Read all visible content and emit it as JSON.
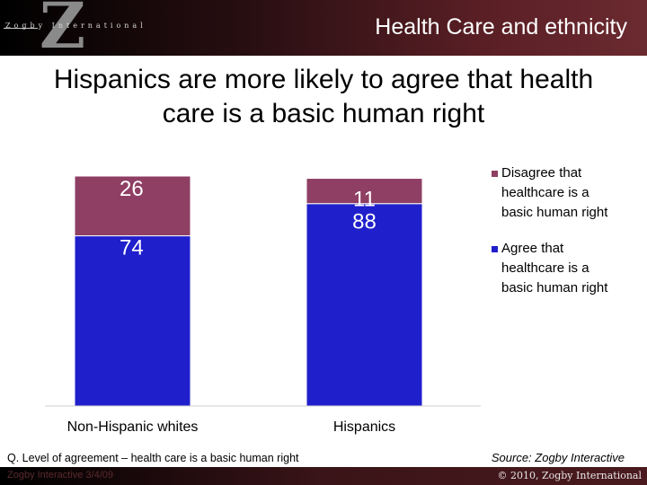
{
  "header": {
    "logo_letter": "Z",
    "logo_text": "Zogby International",
    "title": "Health Care and ethnicity"
  },
  "slide": {
    "title_line1": "Hispanics are more likely to agree that health",
    "title_line2": "care is a basic human right"
  },
  "chart_data": {
    "type": "bar",
    "stacked": true,
    "categories": [
      "Non-Hispanic whites",
      "Hispanics"
    ],
    "series": [
      {
        "name": "Agree that healthcare is a basic human right",
        "values": [
          74,
          88
        ],
        "color": "#1f1fcc"
      },
      {
        "name": "Disagree that healthcare is a basic human right",
        "values": [
          26,
          11
        ],
        "color": "#8f3f64"
      }
    ],
    "legend": [
      {
        "name": "Disagree that healthcare is a basic human right",
        "lines": [
          "Disagree that",
          "healthcare is a",
          "basic human right"
        ],
        "color": "#8f3f64"
      },
      {
        "name": "Agree that healthcare is a basic human right",
        "lines": [
          "Agree that",
          "healthcare is a",
          "basic human right"
        ],
        "color": "#1f1fcc"
      }
    ],
    "ylim": [
      0,
      100
    ],
    "legend_position": "right",
    "grid": false
  },
  "footer": {
    "note": "Q. Level of agreement – health care is a basic human right",
    "source": "Source: Zogby Interactive",
    "left_text": "Zogby Interactive 3/4/09",
    "copyright": "© 2010, Zogby International"
  }
}
